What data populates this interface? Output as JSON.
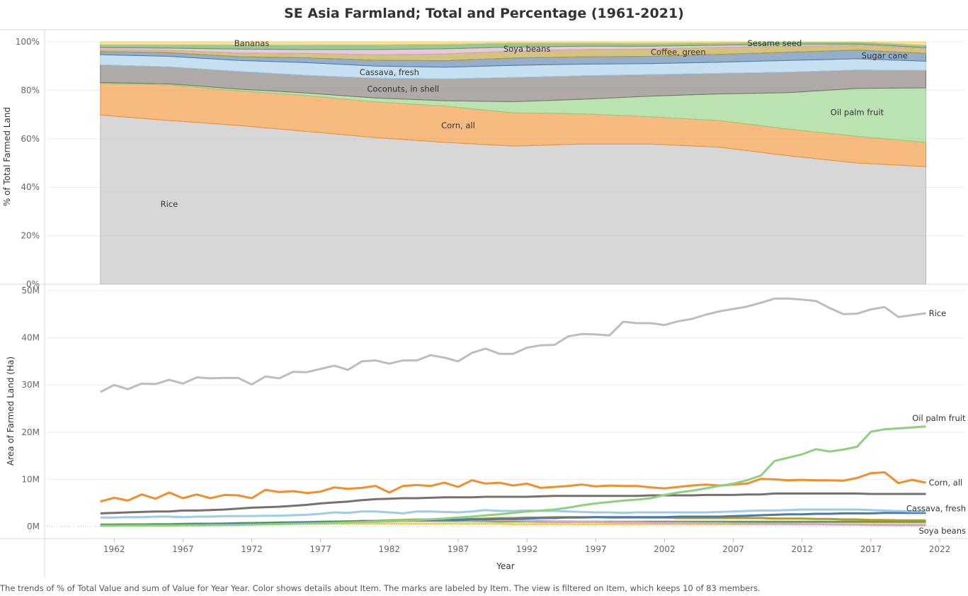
{
  "title": "SE Asia Farmland; Total and Percentage (1961-2021)",
  "caption": "The trends of % of Total Value and sum of Value for Year Year.  Color shows details about Item.  The marks are labeled by Item. The view is filtered on Item, which keeps 10 of 83 members.",
  "colors": {
    "Rice": "#bdbdbd",
    "Corn, all": "#f28e2b",
    "Oil palm fruit": "#8cd17d",
    "Coconuts, in shell": "#79706e",
    "Cassava, fresh": "#a0cbe8",
    "Sugar cane": "#4e79a7",
    "Coffee, green": "#b6992d",
    "Soya beans": "#d4a6c8",
    "Sesame seed": "#59a14f",
    "Bananas": "#f1ce63"
  },
  "chart_data": [
    {
      "type": "area",
      "stacked": true,
      "normalized": true,
      "xlabel": "",
      "ylabel": "% of Total Farmed Land",
      "ylim": [
        0,
        100
      ],
      "y_ticks": [
        "0%",
        "20%",
        "40%",
        "60%",
        "80%",
        "100%"
      ],
      "y_tick_values": [
        0,
        20,
        40,
        60,
        80,
        100
      ],
      "x_ticks": [
        "1962",
        "1967",
        "1972",
        "1977",
        "1982",
        "1987",
        "1992",
        "1997",
        "2002",
        "2007",
        "2012",
        "2017",
        "2022"
      ],
      "x": [
        1961,
        1966,
        1971,
        1976,
        1981,
        1986,
        1991,
        1996,
        2001,
        2006,
        2011,
        2016,
        2021
      ],
      "series": [
        {
          "name": "Rice",
          "values": [
            69.8,
            67.5,
            65.5,
            63.0,
            60.5,
            58.5,
            57.0,
            57.8,
            57.8,
            56.5,
            53.0,
            50.0,
            48.5
          ]
        },
        {
          "name": "Corn, all",
          "values": [
            13.0,
            14.7,
            14.3,
            14.8,
            14.7,
            15.0,
            13.7,
            12.5,
            11.3,
            11.0,
            11.0,
            11.0,
            10.0
          ]
        },
        {
          "name": "Oil palm fruit",
          "values": [
            0.4,
            0.5,
            0.7,
            1.1,
            1.6,
            2.2,
            4.6,
            6.0,
            8.5,
            11.0,
            15.0,
            19.8,
            22.5
          ]
        },
        {
          "name": "Coconuts, in shell",
          "values": [
            7.3,
            7.0,
            7.3,
            7.3,
            8.2,
            9.0,
            10.0,
            9.7,
            8.9,
            8.5,
            8.5,
            7.6,
            7.2
          ]
        },
        {
          "name": "Cassava, fresh",
          "values": [
            4.2,
            4.3,
            4.5,
            5.2,
            5.0,
            4.8,
            5.0,
            4.8,
            4.5,
            4.6,
            4.8,
            4.6,
            3.8
          ]
        },
        {
          "name": "Sugar cane",
          "values": [
            1.3,
            1.5,
            1.6,
            2.0,
            2.4,
            2.7,
            3.0,
            3.0,
            3.0,
            3.2,
            3.4,
            3.6,
            3.2
          ]
        },
        {
          "name": "Coffee, green",
          "values": [
            0.8,
            1.0,
            1.5,
            1.8,
            2.3,
            2.8,
            2.9,
            3.0,
            3.0,
            2.9,
            2.5,
            2.0,
            2.0
          ]
        },
        {
          "name": "Soya beans",
          "values": [
            0.8,
            0.9,
            1.6,
            1.6,
            2.1,
            2.1,
            1.7,
            1.4,
            1.2,
            0.9,
            0.8,
            0.5,
            0.4
          ]
        },
        {
          "name": "Sesame seed",
          "values": [
            1.2,
            1.4,
            1.7,
            1.9,
            2.0,
            1.9,
            1.6,
            1.3,
            1.2,
            1.0,
            1.0,
            0.9,
            1.0
          ]
        },
        {
          "name": "Bananas",
          "values": [
            1.2,
            1.2,
            1.3,
            1.3,
            1.2,
            1.0,
            0.5,
            0.5,
            0.6,
            0.4,
            0.0,
            0.0,
            1.4
          ]
        }
      ]
    },
    {
      "type": "line",
      "xlabel": "Year",
      "ylabel": "Area of Farmed Land (Ha)",
      "ylim": [
        0,
        50000000
      ],
      "y_ticks": [
        "0M",
        "10M",
        "20M",
        "30M",
        "40M",
        "50M"
      ],
      "y_tick_values": [
        0,
        10000000,
        20000000,
        30000000,
        40000000,
        50000000
      ],
      "x_ticks": [
        "1962",
        "1967",
        "1972",
        "1977",
        "1982",
        "1987",
        "1992",
        "1997",
        "2002",
        "2007",
        "2012",
        "2017",
        "2022"
      ],
      "x_tick_values": [
        1962,
        1967,
        1972,
        1977,
        1982,
        1987,
        1992,
        1997,
        2002,
        2007,
        2012,
        2017,
        2022
      ],
      "xlim": [
        1957.1,
        2023.8
      ],
      "x": [
        1961,
        1962,
        1963,
        1964,
        1965,
        1966,
        1967,
        1968,
        1969,
        1970,
        1971,
        1972,
        1973,
        1974,
        1975,
        1976,
        1977,
        1978,
        1979,
        1980,
        1981,
        1982,
        1983,
        1984,
        1985,
        1986,
        1987,
        1988,
        1989,
        1990,
        1991,
        1992,
        1993,
        1994,
        1995,
        1996,
        1997,
        1998,
        1999,
        2000,
        2001,
        2002,
        2003,
        2004,
        2005,
        2006,
        2007,
        2008,
        2009,
        2010,
        2011,
        2012,
        2013,
        2014,
        2015,
        2016,
        2017,
        2018,
        2019,
        2020,
        2021
      ],
      "series": [
        {
          "name": "Rice",
          "values": [
            28.5,
            30.0,
            29.1,
            30.3,
            30.2,
            31.1,
            30.3,
            31.6,
            31.4,
            31.5,
            31.5,
            30.1,
            31.8,
            31.4,
            32.8,
            32.7,
            33.4,
            34.1,
            33.2,
            35.0,
            35.2,
            34.5,
            35.2,
            35.2,
            36.3,
            35.8,
            35.0,
            36.8,
            37.7,
            36.6,
            36.6,
            37.9,
            38.4,
            38.5,
            40.3,
            40.8,
            40.7,
            40.5,
            43.4,
            43.1,
            43.1,
            42.7,
            43.5,
            44.0,
            44.9,
            45.6,
            46.1,
            46.6,
            47.4,
            48.3,
            48.3,
            48.1,
            47.8,
            46.3,
            45.0,
            45.1,
            46.0,
            46.5,
            44.4,
            44.8,
            45.2
          ]
        },
        {
          "name": "Oil palm fruit",
          "values": [
            0.2,
            0.2,
            0.21,
            0.22,
            0.22,
            0.23,
            0.25,
            0.27,
            0.3,
            0.33,
            0.36,
            0.4,
            0.46,
            0.52,
            0.58,
            0.64,
            0.7,
            0.78,
            0.86,
            0.95,
            1.05,
            1.15,
            1.25,
            1.4,
            1.55,
            1.7,
            1.9,
            2.1,
            2.35,
            2.6,
            2.9,
            3.2,
            3.4,
            3.6,
            4.0,
            4.5,
            4.9,
            5.2,
            5.5,
            5.7,
            6.0,
            6.7,
            7.2,
            7.6,
            8.1,
            8.6,
            9.1,
            9.8,
            10.8,
            13.9,
            14.6,
            15.3,
            16.4,
            15.9,
            16.3,
            16.9,
            20.1,
            20.6,
            20.8,
            21.0,
            21.2
          ]
        },
        {
          "name": "Corn, all",
          "values": [
            5.3,
            6.1,
            5.5,
            6.8,
            5.9,
            7.2,
            6.0,
            6.8,
            6.0,
            6.7,
            6.6,
            6.0,
            7.8,
            7.3,
            7.5,
            7.1,
            7.4,
            8.3,
            8.0,
            8.2,
            8.6,
            7.2,
            8.6,
            8.8,
            8.6,
            9.3,
            8.4,
            9.8,
            9.1,
            9.3,
            8.7,
            9.1,
            8.2,
            8.4,
            8.6,
            8.9,
            8.5,
            8.7,
            8.6,
            8.6,
            8.3,
            8.1,
            8.4,
            8.7,
            8.9,
            8.7,
            8.9,
            9.1,
            10.1,
            10.0,
            9.8,
            9.9,
            9.8,
            9.8,
            9.7,
            10.3,
            11.3,
            11.5,
            9.2,
            9.9,
            9.3
          ]
        },
        {
          "name": "Coconuts, in shell",
          "values": [
            2.8,
            2.9,
            3.0,
            3.1,
            3.2,
            3.2,
            3.4,
            3.4,
            3.5,
            3.6,
            3.8,
            4.0,
            4.1,
            4.2,
            4.4,
            4.6,
            4.9,
            5.1,
            5.3,
            5.6,
            5.8,
            5.9,
            6.0,
            6.0,
            6.1,
            6.2,
            6.2,
            6.2,
            6.3,
            6.3,
            6.3,
            6.3,
            6.4,
            6.5,
            6.5,
            6.5,
            6.5,
            6.5,
            6.5,
            6.5,
            6.6,
            6.6,
            6.6,
            6.6,
            6.7,
            6.7,
            6.7,
            6.8,
            6.8,
            7.0,
            7.0,
            7.0,
            7.0,
            7.0,
            7.0,
            7.0,
            6.9,
            6.9,
            6.9,
            6.9,
            6.9
          ]
        },
        {
          "name": "Cassava, fresh",
          "values": [
            1.9,
            1.9,
            2.0,
            2.0,
            2.1,
            2.1,
            2.0,
            2.1,
            2.1,
            2.2,
            2.2,
            2.2,
            2.3,
            2.3,
            2.4,
            2.5,
            2.7,
            3.0,
            2.9,
            3.2,
            3.2,
            3.0,
            2.8,
            3.2,
            3.2,
            3.1,
            3.0,
            3.2,
            3.5,
            3.3,
            3.3,
            3.4,
            3.3,
            3.3,
            3.2,
            3.1,
            3.0,
            3.0,
            2.9,
            3.0,
            3.0,
            3.0,
            3.0,
            3.0,
            3.0,
            3.1,
            3.2,
            3.3,
            3.4,
            3.4,
            3.5,
            3.6,
            3.6,
            3.6,
            3.6,
            3.6,
            3.5,
            3.4,
            3.3,
            3.2,
            3.2
          ]
        },
        {
          "name": "Sugar cane",
          "values": [
            0.3,
            0.3,
            0.35,
            0.35,
            0.4,
            0.4,
            0.45,
            0.5,
            0.5,
            0.55,
            0.6,
            0.65,
            0.7,
            0.75,
            0.8,
            0.85,
            0.9,
            1.0,
            1.0,
            1.1,
            1.1,
            1.2,
            1.2,
            1.3,
            1.3,
            1.4,
            1.4,
            1.5,
            1.5,
            1.6,
            1.6,
            1.7,
            1.8,
            1.8,
            1.9,
            1.9,
            2.0,
            2.0,
            2.0,
            2.0,
            2.0,
            2.0,
            2.1,
            2.1,
            2.1,
            2.1,
            2.2,
            2.3,
            2.4,
            2.5,
            2.6,
            2.6,
            2.7,
            2.7,
            2.8,
            2.8,
            2.8,
            2.9,
            2.9,
            2.9,
            2.9
          ]
        },
        {
          "name": "Coffee, green",
          "values": [
            0.2,
            0.2,
            0.25,
            0.25,
            0.3,
            0.3,
            0.35,
            0.4,
            0.4,
            0.45,
            0.5,
            0.55,
            0.6,
            0.65,
            0.7,
            0.8,
            0.9,
            1.0,
            1.1,
            1.2,
            1.2,
            1.3,
            1.4,
            1.5,
            1.5,
            1.5,
            1.6,
            1.6,
            1.7,
            1.8,
            1.8,
            1.9,
            1.9,
            2.0,
            2.0,
            2.0,
            2.0,
            1.9,
            1.9,
            1.9,
            1.9,
            1.9,
            1.8,
            1.8,
            1.8,
            1.8,
            1.8,
            1.8,
            1.8,
            1.7,
            1.7,
            1.7,
            1.6,
            1.6,
            1.5,
            1.5,
            1.4,
            1.4,
            1.3,
            1.3,
            1.3
          ]
        },
        {
          "name": "Soya beans",
          "values": [
            0.3,
            0.3,
            0.3,
            0.35,
            0.35,
            0.4,
            0.4,
            0.45,
            0.5,
            0.55,
            0.6,
            0.65,
            0.7,
            0.75,
            0.8,
            0.85,
            0.9,
            0.95,
            1.0,
            1.0,
            1.1,
            1.1,
            1.2,
            1.2,
            1.2,
            1.3,
            1.3,
            1.3,
            1.3,
            1.3,
            1.3,
            1.2,
            1.2,
            1.1,
            1.1,
            1.0,
            1.0,
            0.9,
            0.9,
            0.9,
            0.8,
            0.8,
            0.8,
            0.75,
            0.7,
            0.7,
            0.65,
            0.6,
            0.6,
            0.55,
            0.55,
            0.5,
            0.5,
            0.45,
            0.4,
            0.4,
            0.35,
            0.35,
            0.3,
            0.3,
            0.3
          ]
        },
        {
          "name": "Sesame seed",
          "values": [
            0.4,
            0.4,
            0.45,
            0.45,
            0.5,
            0.5,
            0.55,
            0.6,
            0.6,
            0.65,
            0.7,
            0.75,
            0.8,
            0.85,
            0.9,
            0.95,
            1.0,
            1.05,
            1.1,
            1.1,
            1.1,
            1.15,
            1.2,
            1.2,
            1.2,
            1.2,
            1.2,
            1.2,
            1.15,
            1.1,
            1.1,
            1.1,
            1.05,
            1.0,
            1.0,
            1.0,
            1.0,
            1.0,
            1.0,
            1.0,
            1.0,
            1.0,
            1.0,
            1.0,
            1.0,
            1.0,
            1.0,
            1.0,
            1.0,
            1.0,
            1.0,
            1.0,
            1.0,
            1.0,
            1.0,
            1.0,
            1.0,
            1.0,
            1.0,
            1.0,
            1.0
          ]
        },
        {
          "name": "Bananas",
          "values": [
            0.4,
            0.4,
            0.4,
            0.4,
            0.45,
            0.45,
            0.45,
            0.5,
            0.5,
            0.5,
            0.5,
            0.55,
            0.55,
            0.55,
            0.6,
            0.6,
            0.6,
            0.6,
            0.6,
            0.6,
            0.6,
            0.6,
            0.6,
            0.6,
            0.6,
            0.6,
            0.6,
            0.6,
            0.6,
            0.6,
            0.5,
            0.5,
            0.5,
            0.5,
            0.5,
            0.5,
            0.5,
            0.5,
            0.5,
            0.5,
            0.5,
            0.5,
            0.5,
            0.5,
            0.5,
            0.5,
            0.5,
            0.5,
            0.5,
            0.5,
            0.5,
            0.5,
            0.5,
            0.5,
            0.5,
            0.5,
            0.5,
            0.5,
            0.5,
            0.5,
            0.5
          ]
        }
      ],
      "value_unit_note": "values in millions of hectares"
    }
  ],
  "area_labels": [
    "Bananas",
    "Soya beans",
    "Sesame seed",
    "Coffee, green",
    "Sugar cane",
    "Cassava, fresh",
    "Coconuts, in shell",
    "Oil palm fruit",
    "Corn, all",
    "Rice"
  ],
  "line_labels": [
    "Rice",
    "Oil palm fruit",
    "Corn, all",
    "Cassava, fresh",
    "Soya beans"
  ]
}
